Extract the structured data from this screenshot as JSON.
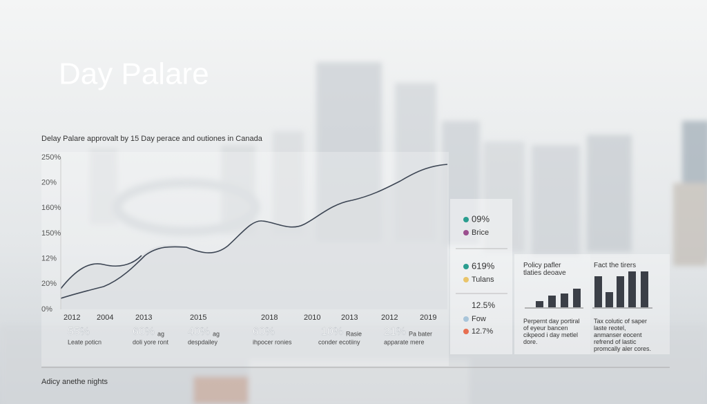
{
  "header": {
    "title": "Day Palare",
    "subtitle": "Delay Palare approvalt by 15 Day perace and outiones in Canada"
  },
  "chart": {
    "y_labels": [
      "250%",
      "20%",
      "160%",
      "150%",
      "12%",
      "20%",
      "0%"
    ],
    "x_labels": [
      "2012",
      "2004",
      "2013",
      "2015",
      "2018",
      "2010",
      "2013",
      "2012",
      "2019"
    ]
  },
  "stats": [
    {
      "value": "55%",
      "label": "Leate poticn"
    },
    {
      "value": "60%",
      "suffix": "ag",
      "label": "doli yore ront"
    },
    {
      "value": "40%",
      "suffix": "ag",
      "label": "despdailey"
    },
    {
      "value": "60%",
      "label": "ihpocer ronies"
    },
    {
      "value": "10%",
      "suffix": "Rasie",
      "label": "conder ecotiiny"
    },
    {
      "value": "21%",
      "suffix": "Pa bater",
      "label": "apparate mere"
    }
  ],
  "legend": [
    {
      "text": "09%",
      "color": "#2a9d8f"
    },
    {
      "text": "Brice",
      "color": "#9b4f8f"
    },
    {
      "text": "619%",
      "color": "#2a9d8f"
    },
    {
      "text": "Tulans",
      "color": "#e9c46a"
    },
    {
      "text": "12.5%"
    },
    {
      "text": "Fow",
      "color": "#a8c5da"
    },
    {
      "text": "12.7%",
      "color": "#e76f51"
    }
  ],
  "cards": [
    {
      "title": "Policy pafler tlaties deoave",
      "body": "Perpernt day portiral of eyeur bancen cikpeod i day metlel dore."
    },
    {
      "title": "Fact the tirers",
      "body": "Tax colutic of saper laste reotel, anmanser eocent refrend of lastic promcally aler cores."
    }
  ],
  "footer": "Adicy anethe nights"
}
